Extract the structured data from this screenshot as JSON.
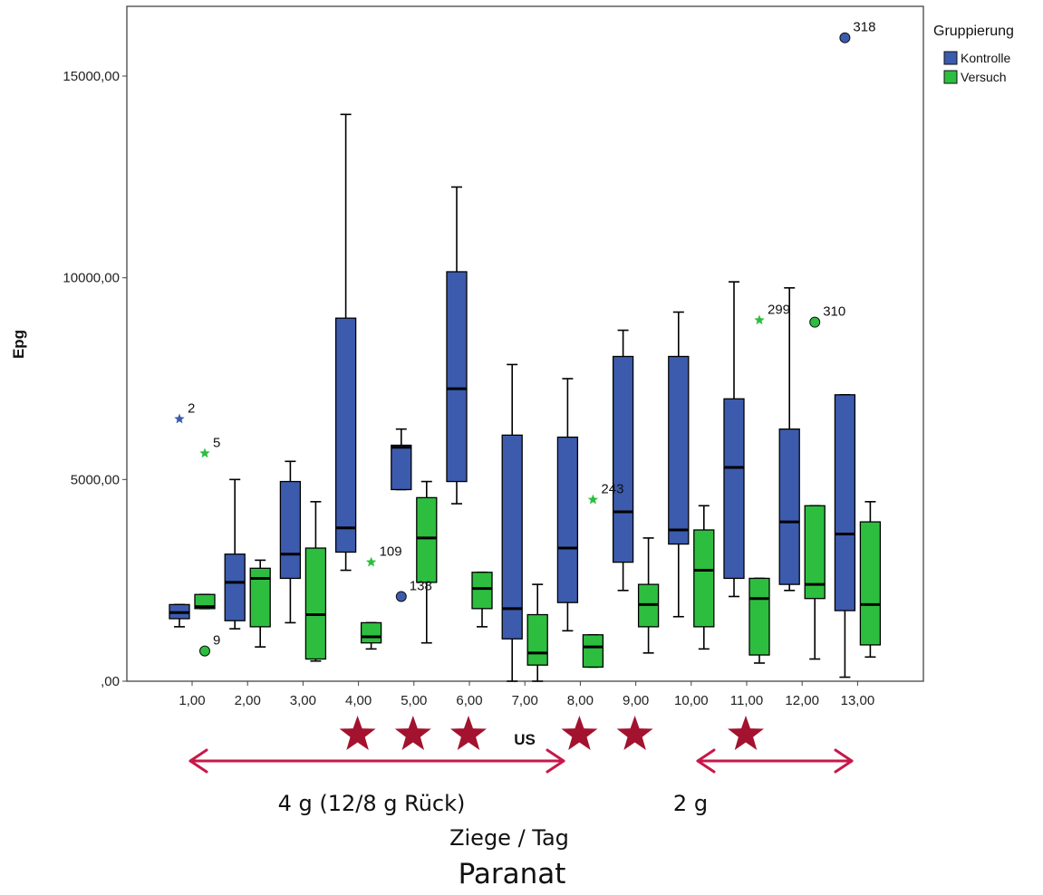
{
  "chart_data": {
    "type": "boxplot",
    "xlabel": "US",
    "ylabel": "Epg",
    "ylim": [
      0,
      16200
    ],
    "y_ticks": [
      {
        "value": 0,
        "label": ",00"
      },
      {
        "value": 5000,
        "label": "5000,00"
      },
      {
        "value": 10000,
        "label": "10000,00"
      },
      {
        "value": 15000,
        "label": "15000,00"
      }
    ],
    "categories": [
      "1,00",
      "2,00",
      "3,00",
      "4,00",
      "5,00",
      "6,00",
      "7,00",
      "8,00",
      "9,00",
      "10,00",
      "11,00",
      "12,00",
      "13,00"
    ],
    "legend": {
      "title": "Gruppierung",
      "position": "top-right",
      "items": [
        {
          "name": "Kontrolle",
          "color": "#3C5BAD"
        },
        {
          "name": "Versuch",
          "color": "#2DBE3F"
        }
      ]
    },
    "series": [
      {
        "name": "Kontrolle",
        "color": "#3C5BAD",
        "boxes": [
          {
            "min": 1350,
            "q1": 1550,
            "median": 1700,
            "q3": 1900,
            "max": 1900
          },
          {
            "min": 1300,
            "q1": 1500,
            "median": 2450,
            "q3": 3150,
            "max": 5000
          },
          {
            "min": 1450,
            "q1": 2550,
            "median": 3150,
            "q3": 4950,
            "max": 5450
          },
          {
            "min": 2750,
            "q1": 3200,
            "median": 3800,
            "q3": 9000,
            "max": 14050
          },
          {
            "min": 4750,
            "q1": 4750,
            "median": 5800,
            "q3": 5850,
            "max": 6250
          },
          {
            "min": 4400,
            "q1": 4950,
            "median": 7250,
            "q3": 10150,
            "max": 12250
          },
          {
            "min": 0,
            "q1": 1050,
            "median": 1800,
            "q3": 6100,
            "max": 7850
          },
          {
            "min": 1250,
            "q1": 1950,
            "median": 3300,
            "q3": 6050,
            "max": 7500
          },
          {
            "min": 2250,
            "q1": 2950,
            "median": 4200,
            "q3": 8050,
            "max": 8700
          },
          {
            "min": 1600,
            "q1": 3400,
            "median": 3750,
            "q3": 8050,
            "max": 9150
          },
          {
            "min": 2100,
            "q1": 2550,
            "median": 5300,
            "q3": 7000,
            "max": 9900
          },
          {
            "min": 2250,
            "q1": 2400,
            "median": 3950,
            "q3": 6250,
            "max": 9750
          },
          {
            "min": 100,
            "q1": 1750,
            "median": 3650,
            "q3": 7100,
            "max": 7100
          }
        ]
      },
      {
        "name": "Versuch",
        "color": "#2DBE3F",
        "boxes": [
          {
            "min": 1800,
            "q1": 1800,
            "median": 1850,
            "q3": 2150,
            "max": 2150
          },
          {
            "min": 850,
            "q1": 1350,
            "median": 2550,
            "q3": 2800,
            "max": 3000
          },
          {
            "min": 500,
            "q1": 550,
            "median": 1650,
            "q3": 3300,
            "max": 4450
          },
          {
            "min": 800,
            "q1": 950,
            "median": 1100,
            "q3": 1450,
            "max": 1450
          },
          {
            "min": 950,
            "q1": 2450,
            "median": 3550,
            "q3": 4550,
            "max": 4950
          },
          {
            "min": 1350,
            "q1": 1800,
            "median": 2300,
            "q3": 2700,
            "max": 2700
          },
          {
            "min": 0,
            "q1": 400,
            "median": 700,
            "q3": 1650,
            "max": 2400
          },
          {
            "min": 350,
            "q1": 350,
            "median": 850,
            "q3": 1150,
            "max": 1150
          },
          {
            "min": 700,
            "q1": 1350,
            "median": 1900,
            "q3": 2400,
            "max": 3550
          },
          {
            "min": 800,
            "q1": 1350,
            "median": 2750,
            "q3": 3750,
            "max": 4350
          },
          {
            "min": 450,
            "q1": 650,
            "median": 2050,
            "q3": 2550,
            "max": 2550
          },
          {
            "min": 550,
            "q1": 2050,
            "median": 2400,
            "q3": 4350,
            "max": 4350
          },
          {
            "min": 600,
            "q1": 900,
            "median": 1900,
            "q3": 3950,
            "max": 4450
          }
        ]
      }
    ],
    "outliers": [
      {
        "series": "Kontrolle",
        "category": "1,00",
        "value": 6500,
        "marker": "star",
        "label": "2"
      },
      {
        "series": "Versuch",
        "category": "1,00",
        "value": 5650,
        "marker": "star",
        "label": "5"
      },
      {
        "series": "Versuch",
        "category": "1,00",
        "value": 750,
        "marker": "circle",
        "label": "9"
      },
      {
        "series": "Versuch",
        "category": "4,00",
        "value": 2950,
        "marker": "star",
        "label": "109"
      },
      {
        "series": "Kontrolle",
        "category": "5,00",
        "value": 2100,
        "marker": "circle",
        "label": "138"
      },
      {
        "series": "Versuch",
        "category": "8,00",
        "value": 4500,
        "marker": "star",
        "label": "243"
      },
      {
        "series": "Versuch",
        "category": "11,00",
        "value": 8950,
        "marker": "star",
        "label": "299"
      },
      {
        "series": "Versuch",
        "category": "12,00",
        "value": 8900,
        "marker": "circle",
        "label": "310"
      },
      {
        "series": "Kontrolle",
        "category": "13,00",
        "value": 15950,
        "marker": "circle",
        "label": "318"
      }
    ]
  },
  "annotations": {
    "star_color": "#A3122E",
    "arrow_color": "#C8174A",
    "stars_at_categories": [
      "4,00",
      "5,00",
      "6,00",
      "8,00",
      "9,00",
      "11,00"
    ],
    "dose_left": "4 g (12/8 g Rück)",
    "dose_right": "2 g",
    "per_goat": "Ziege / Tag",
    "product": "Paranat"
  }
}
